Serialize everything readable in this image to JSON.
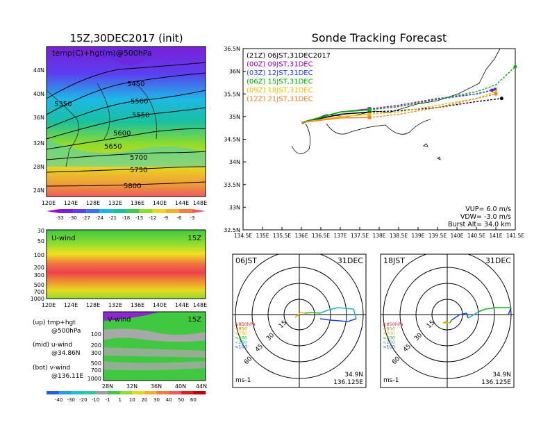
{
  "left": {
    "title": "15Z,30DEC2017 (init)",
    "map_label": "temp(C)+hgt(m)@500hPa",
    "lat_ticks": [
      "44N",
      "40N",
      "36N",
      "32N",
      "28N",
      "24N"
    ],
    "lon_ticks": [
      "120E",
      "124E",
      "128E",
      "132E",
      "136E",
      "140E",
      "144E",
      "148E"
    ],
    "contours": [
      "5350",
      "5450",
      "5500",
      "5550",
      "5600",
      "5650",
      "5700",
      "5750",
      "5800"
    ],
    "temp_bar": [
      "-33",
      "-30",
      "-27",
      "-24",
      "-21",
      "-18",
      "-15",
      "-12",
      "-9",
      "-6",
      "-3"
    ],
    "uwind": {
      "label": "U-wind",
      "time": "15Z",
      "p_ticks": [
        "30",
        "50",
        "100",
        "200",
        "300",
        "500",
        "700",
        "1000"
      ],
      "lon_ticks": [
        "120E",
        "124E",
        "128E",
        "132E",
        "136E",
        "140E",
        "144E",
        "148E"
      ]
    },
    "vwind": {
      "label": "V-wind",
      "time": "15Z",
      "p_ticks": [
        "100",
        "200",
        "300",
        "500",
        "700",
        "1000"
      ],
      "lat_ticks": [
        "28N",
        "32N",
        "36N",
        "40N",
        "44N"
      ]
    },
    "wind_bar": [
      "-40",
      "-30",
      "-20",
      "-10",
      "-1",
      "1",
      "10",
      "20",
      "30",
      "40",
      "50",
      "60"
    ],
    "notes": [
      {
        "a": "(up) tmp+hgt",
        "b": "@500hPa"
      },
      {
        "a": "(mid) u-wind",
        "b": "@34.86N"
      },
      {
        "a": "(bot) v-wind",
        "b": "@136.11E"
      }
    ]
  },
  "track": {
    "title": "Sonde Tracking Forecast",
    "lat_ticks": [
      "36.5N",
      "36N",
      "35.5N",
      "35N",
      "34.5N",
      "34N",
      "33.5N",
      "33N",
      "32.5N"
    ],
    "lon_ticks": [
      "134.5E",
      "135E",
      "135.5E",
      "136E",
      "136.5E",
      "137E",
      "137.5E",
      "138E",
      "138.5E",
      "139E",
      "139.5E",
      "140E",
      "140.5E",
      "141E",
      "141.5E"
    ],
    "legend": [
      {
        "text": "(21Z)  06JST,31DEC2017",
        "color": "#000000"
      },
      {
        "text": "(00Z)  09JST,31DEC",
        "color": "#a000c8"
      },
      {
        "text": "(03Z)  12JST,31DEC",
        "color": "#1e3cff"
      },
      {
        "text": "(06Z)  15JST,31DEC",
        "color": "#00b400"
      },
      {
        "text": "(09Z)  18JST,31DEC",
        "color": "#f0c000"
      },
      {
        "text": "(12Z)  21JST,31DEC",
        "color": "#f08228"
      }
    ],
    "vup": "VUP=  6.0  m/s",
    "vdw": "VDW= -3.0  m/s",
    "burst": "Burst Alt=  34.0  km"
  },
  "hodo": [
    {
      "time": "06JST",
      "date": "31DEC",
      "lat": "34.9N",
      "lon": "136.125E",
      "unit": "ms-1"
    },
    {
      "time": "18JST",
      "date": "31DEC",
      "lat": "34.9N",
      "lon": "136.125E",
      "unit": "ms-1"
    }
  ],
  "hodo_rings": [
    "15",
    "30",
    "45",
    "60"
  ],
  "hodo_legend": [
    {
      "text": "≥850hPa",
      "color": "#e02020"
    },
    {
      "text": "<850",
      "color": "#f08000"
    },
    {
      "text": "<700",
      "color": "#d8c800"
    },
    {
      "text": "<500",
      "color": "#20b020"
    },
    {
      "text": "<250",
      "color": "#20b0d0"
    },
    {
      "text": "<100",
      "color": "#2040e0"
    }
  ],
  "chart_data": [
    {
      "type": "heatmap",
      "title": "15Z,30DEC2017 (init)",
      "field": "temp(C)+hgt(m)@500hPa",
      "contour_levels": [
        5350,
        5450,
        5500,
        5550,
        5600,
        5650,
        5700,
        5750,
        5800
      ],
      "color_levels": [
        -33,
        -30,
        -27,
        -24,
        -21,
        -18,
        -15,
        -12,
        -9,
        -6,
        -3
      ],
      "xlim": [
        "120E",
        "148E"
      ],
      "ylim": [
        "24N",
        "44N"
      ]
    },
    {
      "type": "heatmap",
      "title": "U-wind",
      "time": "15Z",
      "ylim": [
        1000,
        30
      ],
      "xlim": [
        "120E",
        "148E"
      ]
    },
    {
      "type": "heatmap",
      "title": "V-wind",
      "time": "15Z",
      "ylim": [
        1000,
        100
      ],
      "xlim": [
        "28N",
        "44N"
      ]
    },
    {
      "type": "line",
      "title": "Sonde Tracking Forecast",
      "xlim": [
        134.5,
        141.5
      ],
      "ylim": [
        32.5,
        36.5
      ],
      "series": [
        {
          "name": "(21Z) 06JST,31DEC2017",
          "points": [
            [
              136.0,
              34.87
            ],
            [
              137.0,
              35.05
            ],
            [
              137.75,
              35.1
            ],
            [
              138.5,
              35.13
            ],
            [
              139.5,
              35.2
            ],
            [
              140.5,
              35.33
            ],
            [
              141.15,
              35.4
            ]
          ]
        },
        {
          "name": "(00Z) 09JST,31DEC",
          "points": [
            [
              136.0,
              34.87
            ],
            [
              137.0,
              35.1
            ],
            [
              137.75,
              35.17
            ],
            [
              138.5,
              35.25
            ],
            [
              139.5,
              35.4
            ],
            [
              140.5,
              35.5
            ],
            [
              140.9,
              35.58
            ]
          ]
        },
        {
          "name": "(03Z) 12JST,31DEC",
          "points": [
            [
              136.0,
              34.87
            ],
            [
              137.0,
              35.1
            ],
            [
              137.75,
              35.15
            ],
            [
              138.5,
              35.22
            ],
            [
              139.5,
              35.38
            ],
            [
              140.5,
              35.5
            ],
            [
              140.98,
              35.6
            ]
          ]
        },
        {
          "name": "(06Z) 15JST,31DEC",
          "points": [
            [
              136.0,
              34.87
            ],
            [
              137.0,
              35.1
            ],
            [
              137.75,
              35.15
            ],
            [
              138.5,
              35.22
            ],
            [
              139.5,
              35.38
            ],
            [
              140.5,
              35.55
            ],
            [
              141.0,
              35.7
            ],
            [
              141.5,
              36.1
            ]
          ]
        },
        {
          "name": "(09Z) 18JST,31DEC",
          "points": [
            [
              136.0,
              34.87
            ],
            [
              137.0,
              35.0
            ],
            [
              137.75,
              35.05
            ],
            [
              138.5,
              35.1
            ],
            [
              139.5,
              35.25
            ],
            [
              140.5,
              35.4
            ],
            [
              141.0,
              35.55
            ]
          ]
        },
        {
          "name": "(12Z) 21JST,31DEC",
          "points": [
            [
              136.0,
              34.87
            ],
            [
              137.0,
              34.97
            ],
            [
              137.75,
              34.98
            ],
            [
              138.5,
              35.05
            ],
            [
              139.5,
              35.2
            ],
            [
              140.5,
              35.4
            ],
            [
              141.0,
              35.5
            ]
          ]
        }
      ]
    },
    {
      "type": "scatter",
      "title": "hodograph 06JST 31DEC",
      "rings": [
        15,
        30,
        45,
        60
      ]
    },
    {
      "type": "scatter",
      "title": "hodograph 18JST 31DEC",
      "rings": [
        15,
        30,
        45,
        60
      ]
    }
  ]
}
